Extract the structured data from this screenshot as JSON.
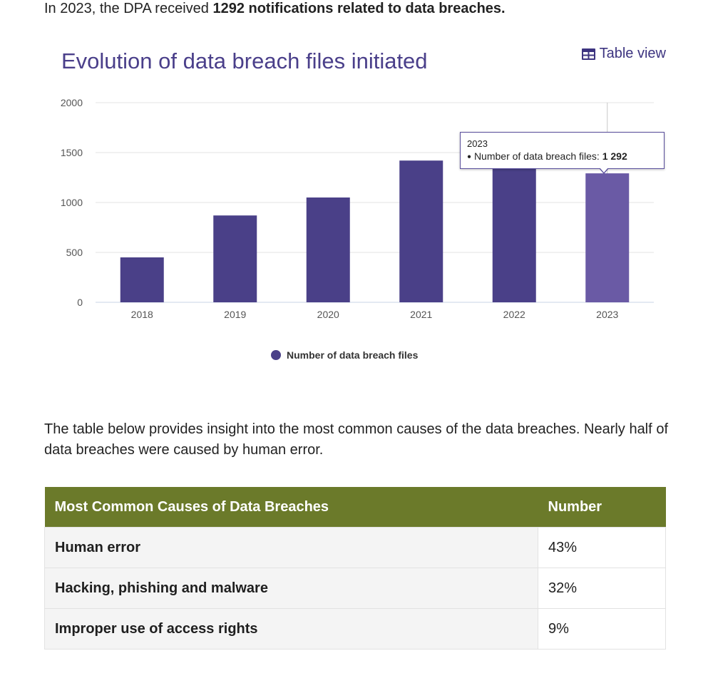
{
  "intro": {
    "prefix": "In 2023, the DPA received ",
    "bold": "1292 notifications related to data breaches."
  },
  "chart_header": {
    "title": "Evolution of data breach files initiated",
    "table_view_label": "Table view",
    "table_view_icon": "table-icon"
  },
  "tooltip": {
    "year": "2023",
    "label": "Number of data breach files:",
    "value": "1 292"
  },
  "chart_data": {
    "type": "bar",
    "title": "Evolution of data breach files initiated",
    "categories": [
      "2018",
      "2019",
      "2020",
      "2021",
      "2022",
      "2023"
    ],
    "series": [
      {
        "name": "Number of data breach files",
        "values": [
          450,
          870,
          1050,
          1420,
          1420,
          1292
        ]
      }
    ],
    "ylim": [
      0,
      2000
    ],
    "yticks": [
      "0",
      "500",
      "1000",
      "1500",
      "2000"
    ],
    "grid": true,
    "legend_position": "bottom",
    "highlighted_category": "2023",
    "colors": {
      "bar": "#4a4088",
      "bar_highlight": "#6a5aa5",
      "grid": "#e3e3e3",
      "axis": "#c9d3e6"
    }
  },
  "legend": {
    "label": "Number of data breach files"
  },
  "paragraph": "The table below provides insight into the most common causes of the data breaches. Nearly half of data breaches were caused by human error.",
  "table": {
    "headers": [
      "Most Common Causes of Data Breaches",
      "Number"
    ],
    "rows": [
      {
        "cause": "Human error",
        "number": "43%"
      },
      {
        "cause": "Hacking, phishing and malware",
        "number": "32%"
      },
      {
        "cause": "Improper use of access rights",
        "number": "9%"
      }
    ],
    "header_color": "#6b7a2a"
  }
}
